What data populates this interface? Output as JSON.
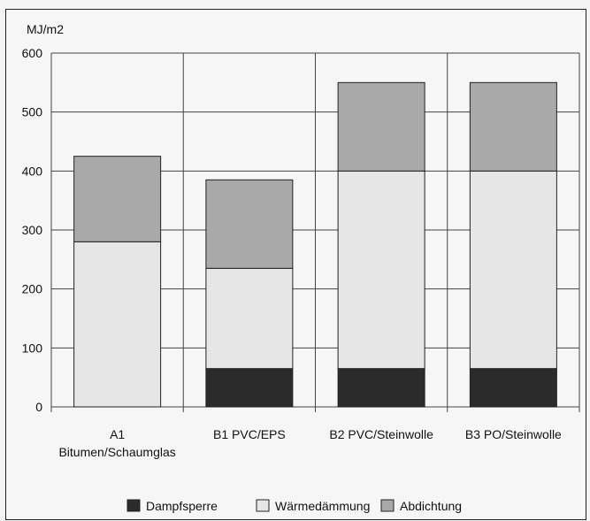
{
  "chart_data": {
    "type": "bar",
    "stacked": true,
    "ylabel": "MJ/m2",
    "ylim": [
      0,
      600
    ],
    "yticks": [
      0,
      100,
      200,
      300,
      400,
      500,
      600
    ],
    "grid": true,
    "legend_position": "bottom",
    "categories": [
      {
        "line1": "A1",
        "line2": "Bitumen/Schaumglas"
      },
      {
        "line1": "B1  PVC/EPS",
        "line2": ""
      },
      {
        "line1": "B2  PVC/Steinwolle",
        "line2": ""
      },
      {
        "line1": "B3  PO/Steinwolle",
        "line2": ""
      }
    ],
    "series": [
      {
        "name": "Dampfsperre",
        "color": "#2b2b2b",
        "values": [
          0,
          65,
          65,
          65
        ]
      },
      {
        "name": "Wärmedämmung",
        "color": "#e6e6e6",
        "values": [
          280,
          170,
          335,
          335
        ]
      },
      {
        "name": "Abdichtung",
        "color": "#a9a9a9",
        "values": [
          145,
          150,
          150,
          150
        ]
      }
    ]
  }
}
